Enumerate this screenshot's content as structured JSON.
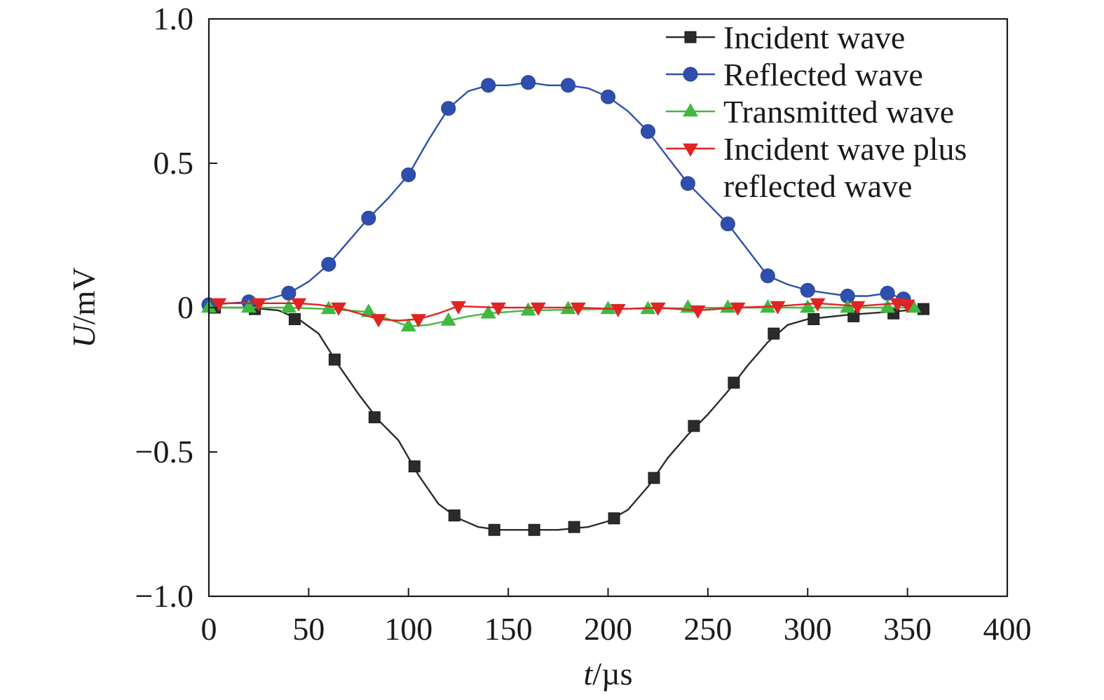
{
  "chart_data": {
    "type": "line",
    "title": "",
    "xlabel": "t/µs",
    "xlabel_italic": "t",
    "xlabel_unit": "/µs",
    "ylabel": "U/mV",
    "ylabel_italic": "U",
    "ylabel_unit": "/mV",
    "xlim": [
      0,
      400
    ],
    "ylim": [
      -1.0,
      1.0
    ],
    "xticks": [
      0,
      50,
      100,
      150,
      200,
      250,
      300,
      350,
      400
    ],
    "xtick_labels": [
      "0",
      "50",
      "100",
      "150",
      "200",
      "250",
      "300",
      "350",
      "400"
    ],
    "yticks": [
      -1.0,
      -0.5,
      0,
      0.5,
      1.0
    ],
    "ytick_labels": [
      "−1.0",
      "−0.5",
      "0",
      "0.5",
      "1.0"
    ],
    "grid": false,
    "legend_position": "top-right",
    "series": [
      {
        "name": "Incident wave",
        "color": "#2b2b2b",
        "marker": "square",
        "x": [
          3,
          23,
          43,
          63,
          83,
          103,
          123,
          143,
          163,
          183,
          203,
          223,
          243,
          263,
          283,
          303,
          323,
          343,
          358
        ],
        "y": [
          0.0,
          -0.005,
          -0.04,
          -0.18,
          -0.38,
          -0.55,
          -0.72,
          -0.77,
          -0.77,
          -0.76,
          -0.73,
          -0.59,
          -0.41,
          -0.26,
          -0.09,
          -0.04,
          -0.03,
          -0.02,
          -0.005
        ],
        "line_x": [
          0,
          20,
          35,
          45,
          55,
          65,
          75,
          85,
          95,
          105,
          115,
          125,
          135,
          145,
          160,
          175,
          190,
          200,
          210,
          220,
          230,
          240,
          250,
          260,
          270,
          280,
          290,
          300,
          320,
          340,
          358
        ],
        "line_y": [
          0.0,
          0.0,
          -0.01,
          -0.04,
          -0.09,
          -0.2,
          -0.3,
          -0.39,
          -0.46,
          -0.58,
          -0.68,
          -0.73,
          -0.76,
          -0.77,
          -0.77,
          -0.77,
          -0.76,
          -0.74,
          -0.7,
          -0.62,
          -0.52,
          -0.44,
          -0.37,
          -0.29,
          -0.2,
          -0.12,
          -0.06,
          -0.04,
          -0.025,
          -0.015,
          -0.005
        ]
      },
      {
        "name": "Reflected wave",
        "color": "#2e4fae",
        "marker": "circle",
        "x": [
          0,
          20,
          40,
          60,
          80,
          100,
          120,
          140,
          160,
          180,
          200,
          220,
          240,
          260,
          280,
          300,
          320,
          340,
          348
        ],
        "y": [
          0.01,
          0.02,
          0.05,
          0.15,
          0.31,
          0.46,
          0.69,
          0.77,
          0.78,
          0.77,
          0.73,
          0.61,
          0.43,
          0.29,
          0.11,
          0.06,
          0.04,
          0.05,
          0.03
        ],
        "line_x": [
          0,
          20,
          30,
          40,
          50,
          60,
          70,
          80,
          90,
          100,
          110,
          120,
          130,
          140,
          150,
          160,
          170,
          180,
          190,
          200,
          210,
          220,
          230,
          240,
          250,
          260,
          270,
          280,
          290,
          300,
          310,
          320,
          330,
          340,
          348
        ],
        "line_y": [
          0.01,
          0.02,
          0.03,
          0.05,
          0.09,
          0.15,
          0.23,
          0.31,
          0.38,
          0.46,
          0.58,
          0.69,
          0.75,
          0.77,
          0.77,
          0.78,
          0.77,
          0.77,
          0.76,
          0.73,
          0.68,
          0.61,
          0.52,
          0.43,
          0.36,
          0.29,
          0.2,
          0.11,
          0.08,
          0.06,
          0.05,
          0.04,
          0.04,
          0.05,
          0.03
        ]
      },
      {
        "name": "Transmitted wave",
        "color": "#3fb93f",
        "marker": "triangle-up",
        "x": [
          0,
          20,
          40,
          60,
          80,
          100,
          120,
          140,
          160,
          180,
          200,
          220,
          240,
          260,
          280,
          300,
          320,
          340,
          353
        ],
        "y": [
          0.0,
          0.0,
          0.0,
          -0.005,
          -0.015,
          -0.065,
          -0.045,
          -0.02,
          -0.01,
          -0.005,
          -0.005,
          -0.005,
          0.0,
          0.0,
          0.0,
          0.0,
          0.0,
          0.0,
          0.0
        ],
        "line_x": [
          0,
          40,
          60,
          70,
          80,
          90,
          100,
          110,
          120,
          130,
          140,
          160,
          200,
          260,
          353
        ],
        "line_y": [
          0.0,
          0.0,
          -0.005,
          -0.01,
          -0.015,
          -0.04,
          -0.065,
          -0.06,
          -0.045,
          -0.03,
          -0.02,
          -0.01,
          -0.005,
          0.0,
          0.0
        ]
      },
      {
        "name": "Incident wave plus reflected wave",
        "name_line1": "Incident wave plus",
        "name_line2": "reflected wave",
        "color": "#e02424",
        "marker": "triangle-down",
        "x": [
          5,
          25,
          45,
          65,
          85,
          105,
          125,
          145,
          165,
          185,
          205,
          225,
          245,
          265,
          285,
          305,
          325,
          345,
          350
        ],
        "y": [
          0.015,
          0.015,
          0.015,
          0.0,
          -0.04,
          -0.04,
          0.005,
          0.0,
          0.0,
          0.0,
          -0.005,
          0.0,
          -0.01,
          0.0,
          0.005,
          0.015,
          0.005,
          0.015,
          0.01
        ],
        "line_x": [
          5,
          25,
          45,
          55,
          65,
          75,
          85,
          95,
          105,
          115,
          125,
          145,
          165,
          185,
          205,
          225,
          245,
          265,
          285,
          305,
          325,
          345,
          350
        ],
        "line_y": [
          0.015,
          0.015,
          0.015,
          0.01,
          0.0,
          -0.02,
          -0.04,
          -0.045,
          -0.04,
          -0.02,
          0.005,
          0.0,
          0.0,
          0.0,
          -0.005,
          0.0,
          -0.01,
          0.0,
          0.005,
          0.015,
          0.005,
          0.015,
          0.01
        ]
      }
    ]
  }
}
